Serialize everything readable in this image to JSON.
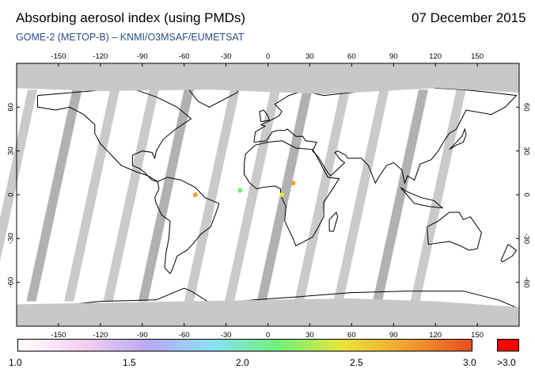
{
  "header": {
    "title": "Absorbing aerosol index (using PMDs)",
    "date": "07 December 2015",
    "subtitle": "GOME-2 (METOP-B)  –  KNMI/O3MSAF/EUMETSAT"
  },
  "map": {
    "longitude_ticks": [
      "-150",
      "-120",
      "-90",
      "-60",
      "-30",
      "0",
      "30",
      "60",
      "90",
      "120",
      "150"
    ],
    "latitude_ticks": [
      "60",
      "30",
      "0",
      "-30",
      "-60"
    ],
    "colors": {
      "frame": "#000000",
      "land_outline": "#000000",
      "no_data_polar": "#c8c8c8",
      "orbit_gap": "#c4c4c4",
      "dark_gap": "#a8a8a8",
      "background": "#ffffff"
    },
    "aerosol_hotspots": [
      {
        "lon": -52,
        "lat": 0,
        "value": 2.6
      },
      {
        "lon": 10,
        "lat": 0,
        "value": 2.5
      },
      {
        "lon": 18,
        "lat": 8,
        "value": 2.7
      },
      {
        "lon": -20,
        "lat": 3,
        "value": 2.2
      }
    ]
  },
  "colorbar": {
    "labels": [
      "1.0",
      "1.5",
      "2.0",
      "2.5",
      "3.0"
    ],
    "overflow_label": ">3.0",
    "range": [
      1.0,
      3.0
    ],
    "gradient_colors": [
      "#ffffff",
      "#f5cff0",
      "#b8a8f5",
      "#8ae0f8",
      "#6ff07a",
      "#e8e63a",
      "#f2a030",
      "#e84e20"
    ],
    "overflow_color": "#ff0000"
  }
}
